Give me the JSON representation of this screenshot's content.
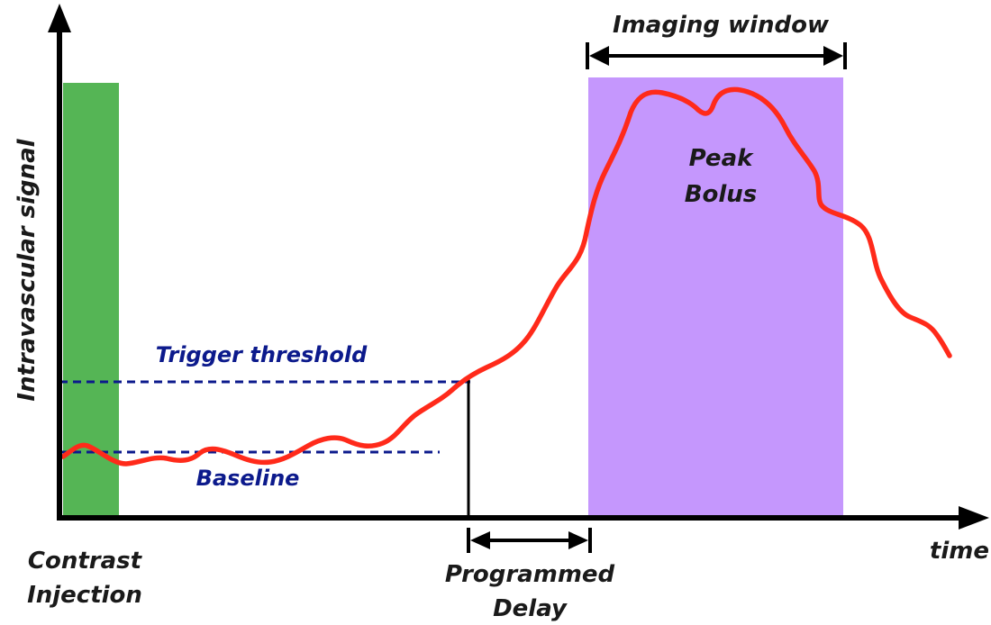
{
  "labels": {
    "y_axis": "Intravascular signal",
    "x_axis": "time",
    "imaging_window": "Imaging window",
    "peak_line1": "Peak",
    "peak_line2": "Bolus",
    "trigger_threshold": "Trigger threshold",
    "baseline": "Baseline",
    "contrast_line1": "Contrast",
    "contrast_line2": "Injection",
    "delay_line1": "Programmed",
    "delay_line2": "Delay"
  },
  "colors": {
    "axis": "#000000",
    "signal_curve": "#ff2a1a",
    "contrast_injection_band": "#55b555",
    "imaging_window_band": "#c597fd",
    "dashed_lines": "#0c1a8c",
    "label_dark": "#1a1a1a",
    "label_blue": "#0c1a8c"
  }
}
